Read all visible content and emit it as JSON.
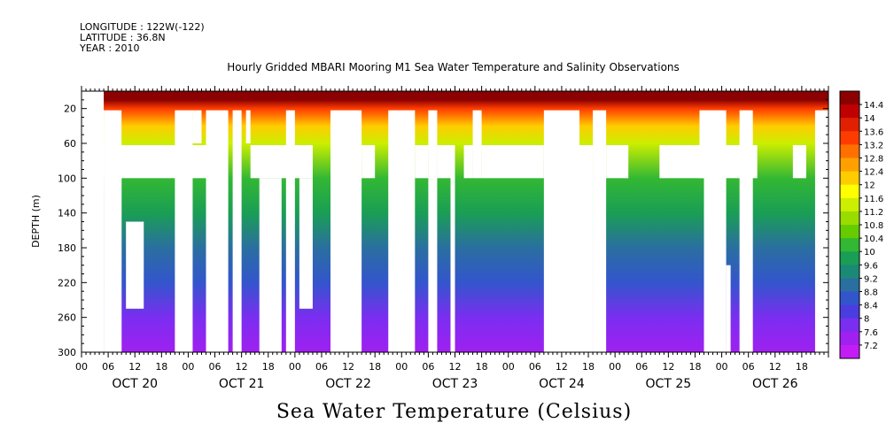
{
  "header": {
    "longitude": "LONGITUDE : 122W(-122)",
    "latitude": "LATITUDE : 36.8N",
    "year": "YEAR : 2010"
  },
  "chart_data": {
    "type": "heatmap",
    "title": "Hourly Gridded MBARI Mooring M1 Sea Water Temperature and Salinity Observations",
    "xlabel": "",
    "ylabel": "DEPTH (m)",
    "caption": "Sea Water Temperature (Celsius)",
    "y_range": [
      300,
      0
    ],
    "y_ticks": [
      20,
      60,
      100,
      140,
      180,
      220,
      260,
      300
    ],
    "x_range_hours": [
      0,
      168
    ],
    "x_hour_labels": [
      "00",
      "06",
      "12",
      "18",
      "00",
      "06",
      "12",
      "18",
      "00",
      "06",
      "12",
      "18",
      "00",
      "06",
      "12",
      "18",
      "00",
      "06",
      "12",
      "18",
      "00",
      "06",
      "12",
      "18",
      "00",
      "06",
      "12",
      "18"
    ],
    "day_labels": [
      "OCT 20",
      "OCT 21",
      "OCT 22",
      "OCT 23",
      "OCT 24",
      "OCT 25",
      "OCT 26"
    ],
    "colorbar": {
      "labels": [
        "14.4",
        "14",
        "13.6",
        "13.2",
        "12.8",
        "12.4",
        "12",
        "11.6",
        "11.2",
        "10.8",
        "10.4",
        "10",
        "9.6",
        "9.2",
        "8.8",
        "8.4",
        "8",
        "7.6",
        "7.2"
      ],
      "colors": [
        "#8b0000",
        "#c00000",
        "#e02000",
        "#ff3c00",
        "#ff7000",
        "#ffa000",
        "#ffcc00",
        "#ffff00",
        "#ccee00",
        "#99dd00",
        "#66cc00",
        "#33b833",
        "#1a9e55",
        "#1a8a77",
        "#2a6fa0",
        "#3355cc",
        "#4a3de0",
        "#7a2ef0",
        "#a020f0",
        "#c41cf5"
      ],
      "min": 7.2,
      "max": 14.4
    },
    "depth_profile": [
      {
        "depth": 10,
        "temp": 14.2
      },
      {
        "depth": 20,
        "temp": 13.2
      },
      {
        "depth": 40,
        "temp": 12.0
      },
      {
        "depth": 60,
        "temp": 11.2
      },
      {
        "depth": 100,
        "temp": 10.3
      },
      {
        "depth": 140,
        "temp": 9.8
      },
      {
        "depth": 180,
        "temp": 9.3
      },
      {
        "depth": 220,
        "temp": 8.7
      },
      {
        "depth": 260,
        "temp": 8.2
      },
      {
        "depth": 300,
        "temp": 7.7
      }
    ],
    "missing_data": [
      {
        "h": [
          0,
          5
        ],
        "d": [
          0,
          300
        ]
      },
      {
        "h": [
          5,
          9
        ],
        "d": [
          22,
          300
        ]
      },
      {
        "h": [
          5,
          28
        ],
        "d": [
          62,
          100
        ]
      },
      {
        "h": [
          6,
          9
        ],
        "d": [
          100,
          300
        ]
      },
      {
        "h": [
          10,
          14
        ],
        "d": [
          150,
          250
        ]
      },
      {
        "h": [
          21,
          25
        ],
        "d": [
          22,
          300
        ]
      },
      {
        "h": [
          25,
          27
        ],
        "d": [
          22,
          60
        ]
      },
      {
        "h": [
          28,
          33
        ],
        "d": [
          22,
          300
        ]
      },
      {
        "h": [
          34,
          36
        ],
        "d": [
          22,
          300
        ]
      },
      {
        "h": [
          37,
          38
        ],
        "d": [
          22,
          60
        ]
      },
      {
        "h": [
          38,
          52
        ],
        "d": [
          62,
          100
        ]
      },
      {
        "h": [
          40,
          45
        ],
        "d": [
          100,
          300
        ]
      },
      {
        "h": [
          46,
          48
        ],
        "d": [
          22,
          300
        ]
      },
      {
        "h": [
          49,
          52
        ],
        "d": [
          100,
          250
        ]
      },
      {
        "h": [
          56,
          63
        ],
        "d": [
          22,
          300
        ]
      },
      {
        "h": [
          63,
          66
        ],
        "d": [
          62,
          100
        ]
      },
      {
        "h": [
          69,
          75
        ],
        "d": [
          22,
          300
        ]
      },
      {
        "h": [
          75,
          78
        ],
        "d": [
          62,
          100
        ]
      },
      {
        "h": [
          78,
          80
        ],
        "d": [
          22,
          300
        ]
      },
      {
        "h": [
          80,
          83
        ],
        "d": [
          62,
          100
        ]
      },
      {
        "h": [
          83,
          84
        ],
        "d": [
          62,
          300
        ]
      },
      {
        "h": [
          86,
          88
        ],
        "d": [
          62,
          100
        ]
      },
      {
        "h": [
          88,
          90
        ],
        "d": [
          22,
          100
        ]
      },
      {
        "h": [
          90,
          104
        ],
        "d": [
          62,
          100
        ]
      },
      {
        "h": [
          104,
          112
        ],
        "d": [
          22,
          300
        ]
      },
      {
        "h": [
          112,
          115
        ],
        "d": [
          62,
          300
        ]
      },
      {
        "h": [
          115,
          118
        ],
        "d": [
          22,
          300
        ]
      },
      {
        "h": [
          118,
          123
        ],
        "d": [
          62,
          100
        ]
      },
      {
        "h": [
          130,
          152
        ],
        "d": [
          62,
          100
        ]
      },
      {
        "h": [
          139,
          140
        ],
        "d": [
          22,
          100
        ]
      },
      {
        "h": [
          140,
          145
        ],
        "d": [
          22,
          300
        ]
      },
      {
        "h": [
          145,
          146
        ],
        "d": [
          200,
          300
        ]
      },
      {
        "h": [
          148,
          151
        ],
        "d": [
          22,
          300
        ]
      },
      {
        "h": [
          160,
          163
        ],
        "d": [
          62,
          100
        ]
      },
      {
        "h": [
          165,
          168
        ],
        "d": [
          22,
          300
        ]
      }
    ]
  }
}
